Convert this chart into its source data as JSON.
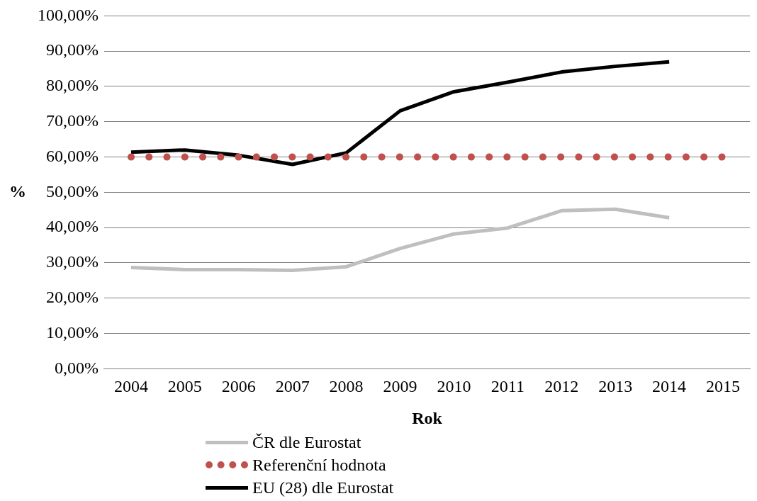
{
  "chart_data": {
    "type": "line",
    "xlabel": "Rok",
    "ylabel": "%",
    "categories": [
      "2004",
      "2005",
      "2006",
      "2007",
      "2008",
      "2009",
      "2010",
      "2011",
      "2012",
      "2013",
      "2014",
      "2015"
    ],
    "series": [
      {
        "name": "ČR dle Eurostat",
        "color": "#bfbfbf",
        "line_style": "solid",
        "values": [
          28.7,
          28.1,
          28.1,
          27.9,
          28.9,
          34.1,
          38.2,
          39.9,
          44.8,
          45.2,
          42.8,
          null
        ]
      },
      {
        "name": "Referenční hodnota",
        "color": "#c0504d",
        "line_style": "dotted",
        "values": [
          60,
          60,
          60,
          60,
          60,
          60,
          60,
          60,
          60,
          60,
          60,
          60
        ]
      },
      {
        "name": "EU (28) dle Eurostat",
        "color": "#000000",
        "line_style": "solid",
        "values": [
          61.4,
          62.0,
          60.5,
          57.9,
          61.2,
          73.1,
          78.5,
          81.2,
          84.1,
          85.7,
          87.0,
          null
        ]
      }
    ],
    "ylim": [
      0,
      100
    ],
    "yticks": [
      {
        "value": 0,
        "label": "0,00%"
      },
      {
        "value": 10,
        "label": "10,00%"
      },
      {
        "value": 20,
        "label": "20,00%"
      },
      {
        "value": 30,
        "label": "30,00%"
      },
      {
        "value": 40,
        "label": "40,00%"
      },
      {
        "value": 50,
        "label": "50,00%"
      },
      {
        "value": 60,
        "label": "60,00%"
      },
      {
        "value": 70,
        "label": "70,00%"
      },
      {
        "value": 80,
        "label": "80,00%"
      },
      {
        "value": 90,
        "label": "90,00%"
      },
      {
        "value": 100,
        "label": "100,00%"
      }
    ],
    "grid": "y",
    "legend": "bottom",
    "marker": "none"
  }
}
